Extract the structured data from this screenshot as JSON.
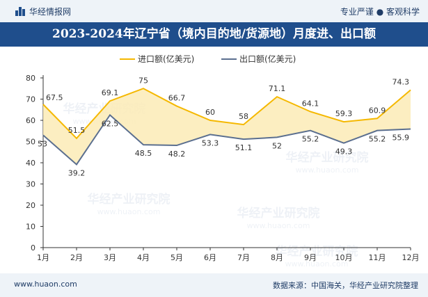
{
  "header": {
    "brand": "华经情报网",
    "tagline": "专业严谨 ● 客观科学"
  },
  "footer": {
    "url": "www.huaon.com",
    "source": "数据来源：中国海关，华经产业研究院整理"
  },
  "watermark": {
    "text_cn": "华经产业研究院",
    "text_url": "www.huaon.com"
  },
  "colors": {
    "brand_blue": "#1f4e8c",
    "import_line": "#f5b800",
    "export_line": "#5b6f8f",
    "fill": "#fcebb6"
  },
  "chart_data": {
    "type": "line",
    "title": "2023-2024年辽宁省（境内目的地/货源地）月度进、出口额",
    "categories": [
      "1月",
      "2月",
      "3月",
      "4月",
      "5月",
      "6月",
      "7月",
      "8月",
      "9月",
      "10月",
      "11月",
      "12月"
    ],
    "series": [
      {
        "name": "进口额(亿美元)",
        "values": [
          67.5,
          51.5,
          69.1,
          75,
          66.7,
          60,
          58,
          71.1,
          64.1,
          59.3,
          60.9,
          74.3
        ]
      },
      {
        "name": "出口额(亿美元)",
        "values": [
          53,
          39.2,
          62.5,
          48.5,
          48.2,
          53.3,
          51.1,
          52,
          55.2,
          49.3,
          55.2,
          55.9
        ]
      }
    ],
    "ylim": [
      0,
      80
    ],
    "yticks": [
      0,
      10,
      20,
      30,
      40,
      50,
      60,
      70,
      80
    ],
    "legend_position": "top-center",
    "fill_between": true,
    "grid": false
  }
}
